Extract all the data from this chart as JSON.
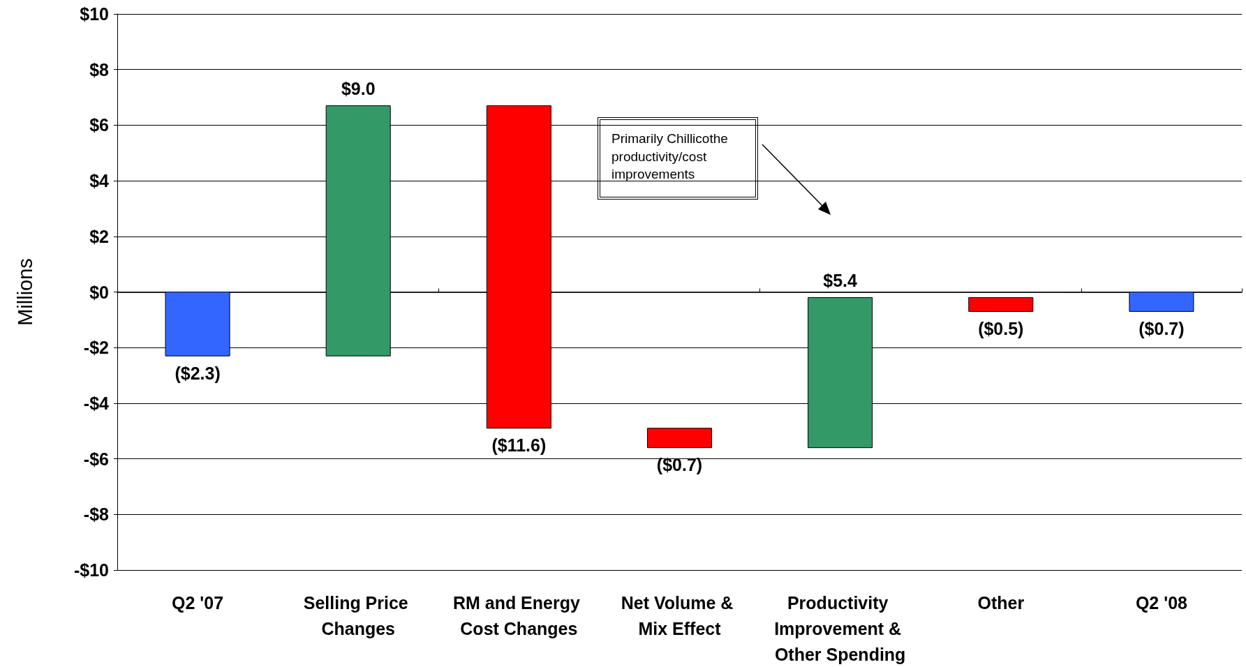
{
  "chart_data": {
    "type": "bar",
    "ylabel": "Millions",
    "categories": [
      "Q2 '07",
      "Selling Price Changes",
      "RM and Energy Cost Changes",
      "Net Volume & Mix Effect",
      "Productivity Improvement & Other Spending",
      "Other",
      "Q2 '08"
    ],
    "values": [
      -2.3,
      9.0,
      -11.6,
      -0.7,
      5.4,
      -0.5,
      -0.7
    ],
    "base": [
      0,
      -2.3,
      6.7,
      -4.9,
      -5.6,
      -0.2,
      0
    ],
    "colors": [
      "#3366ff",
      "#339966",
      "#ff0000",
      "#ff0000",
      "#339966",
      "#ff0000",
      "#3366ff"
    ],
    "value_labels": [
      "($2.3)",
      "$9.0",
      "($11.6)",
      "($0.7)",
      "$5.4",
      "($0.5)",
      "($0.7)"
    ],
    "ylim": [
      -10,
      10
    ],
    "yticks": [
      {
        "value": -10,
        "label": "-$10"
      },
      {
        "value": -8,
        "label": "-$8"
      },
      {
        "value": -6,
        "label": "-$6"
      },
      {
        "value": -4,
        "label": "-$4"
      },
      {
        "value": -2,
        "label": "-$2"
      },
      {
        "value": 0,
        "label": "$0"
      },
      {
        "value": 2,
        "label": "$2"
      },
      {
        "value": 4,
        "label": "$4"
      },
      {
        "value": 6,
        "label": "$6"
      },
      {
        "value": 8,
        "label": "$8"
      },
      {
        "value": 10,
        "label": "$10"
      }
    ],
    "grid": "y",
    "annotations": [
      "Primarily Chillicothe productivity/cost improvements"
    ]
  }
}
